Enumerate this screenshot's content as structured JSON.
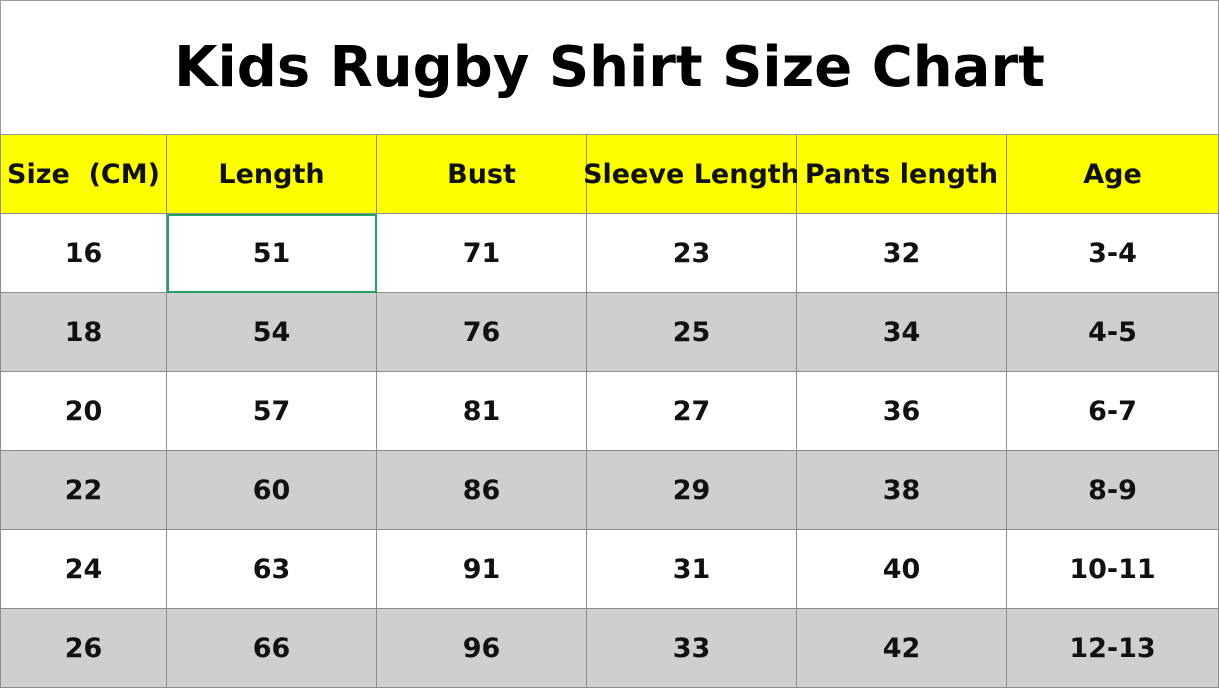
{
  "header": {
    "title": "Kids Rugby Shirt Size Chart"
  },
  "table": {
    "columns": [
      "Size  (CM)",
      "Length",
      "Bust",
      "Sleeve Length",
      "Pants length",
      "Age"
    ],
    "rows": [
      [
        "16",
        "51",
        "71",
        "23",
        "32",
        "3-4"
      ],
      [
        "18",
        "54",
        "76",
        "25",
        "34",
        "4-5"
      ],
      [
        "20",
        "57",
        "81",
        "27",
        "36",
        "6-7"
      ],
      [
        "22",
        "60",
        "86",
        "29",
        "38",
        "8-9"
      ],
      [
        "24",
        "63",
        "91",
        "31",
        "40",
        "10-11"
      ],
      [
        "26",
        "66",
        "96",
        "33",
        "42",
        "12-13"
      ]
    ]
  }
}
